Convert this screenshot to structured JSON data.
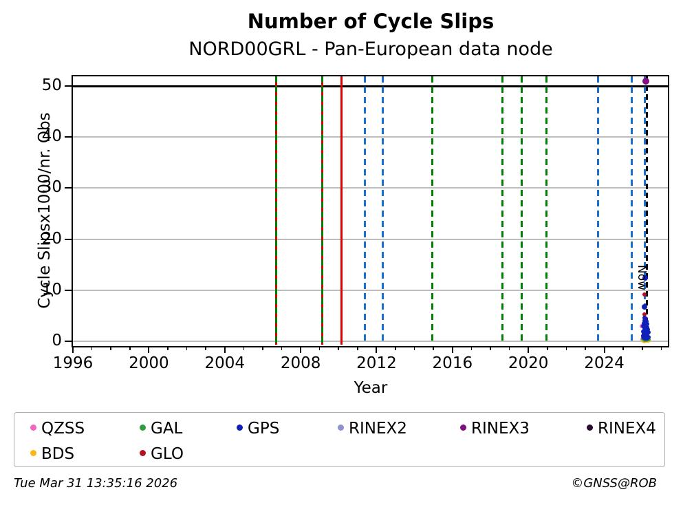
{
  "title": "Number of Cycle Slips",
  "subtitle": "NORD00GRL - Pan-European data node",
  "footer": {
    "timestamp": "Tue Mar 31 13:35:16 2026",
    "credit": "©GNSS@ROB"
  },
  "chart_data": {
    "type": "scatter",
    "title": "Number of Cycle Slips",
    "subtitle": "NORD00GRL - Pan-European data node",
    "xlabel": "Year",
    "ylabel": "Cycle Slipsx1000/nr. Obs",
    "xlim": [
      1996,
      2027.35
    ],
    "ylim": [
      -0.7,
      51.9
    ],
    "x_major_ticks": [
      1996,
      2000,
      2004,
      2008,
      2012,
      2016,
      2020,
      2024
    ],
    "x_tick_labels": [
      "1996",
      "2000",
      "2004",
      "2008",
      "2012",
      "2016",
      "2020",
      "2024"
    ],
    "x_minor_tick_step": 1,
    "y_ticks": [
      0,
      10,
      20,
      30,
      40,
      50
    ],
    "y_tick_labels": [
      "0",
      "10",
      "20",
      "30",
      "40",
      "50"
    ],
    "grid": "horizontal",
    "grid_color": "#bdbdbd",
    "gridline_y_values": [
      0,
      10,
      20,
      30,
      40
    ],
    "threshold_line": {
      "y": 50,
      "color": "#000000",
      "style": "solid"
    },
    "now_line": {
      "x": 2026.25,
      "label": "Now",
      "color": "#000000",
      "style": "dashed"
    },
    "event_lines": [
      {
        "x": 2006.72,
        "color": "#008000",
        "style": "dashed",
        "under_color": "#dd0000"
      },
      {
        "x": 2009.12,
        "color": "#008000",
        "style": "dashed",
        "under_color": "#dd0000"
      },
      {
        "x": 2010.17,
        "color": "#dd0000",
        "style": "solid"
      },
      {
        "x": 2011.4,
        "color": "#176fce",
        "style": "dashed"
      },
      {
        "x": 2012.33,
        "color": "#176fce",
        "style": "dashed"
      },
      {
        "x": 2014.94,
        "color": "#008000",
        "style": "dashed"
      },
      {
        "x": 2018.62,
        "color": "#008000",
        "style": "dashed"
      },
      {
        "x": 2019.66,
        "color": "#008000",
        "style": "dashed"
      },
      {
        "x": 2020.96,
        "color": "#008000",
        "style": "dashed"
      },
      {
        "x": 2023.67,
        "color": "#176fce",
        "style": "dashed"
      },
      {
        "x": 2025.44,
        "color": "#176fce",
        "style": "dashed"
      },
      {
        "x": 2026.15,
        "color": "#176fce",
        "style": "dashed"
      }
    ],
    "series": [
      {
        "name": "QZSS",
        "color": "#f364c3",
        "points": [
          [
            2025.97,
            2.95
          ],
          [
            2026.02,
            0.4
          ],
          [
            2026.1,
            0.12
          ]
        ]
      },
      {
        "name": "BDS",
        "color": "#fdb515",
        "points": [
          [
            2026.06,
            0.15
          ],
          [
            2026.16,
            0.1
          ],
          [
            2026.26,
            0.12
          ],
          [
            2026.12,
            0.04
          ],
          [
            2026.22,
            0.05
          ],
          [
            2026.32,
            0.1
          ]
        ]
      },
      {
        "name": "GLO",
        "color": "#b5121f",
        "points": [
          [
            2026.12,
            9.1
          ],
          [
            2026.1,
            5.2
          ],
          [
            2026.05,
            0.75
          ],
          [
            2026.18,
            0.7
          ],
          [
            2026.3,
            0.65
          ],
          [
            2026.12,
            0.5
          ]
        ]
      },
      {
        "name": "GAL",
        "color": "#2f9e41",
        "points": [
          [
            2026.06,
            0.45
          ],
          [
            2026.16,
            0.4
          ],
          [
            2026.26,
            0.38
          ],
          [
            2026.1,
            0.3
          ],
          [
            2026.22,
            0.28
          ],
          [
            2026.33,
            0.32
          ]
        ]
      },
      {
        "name": "GPS",
        "color": "#1020b8",
        "points": [
          [
            2026.17,
            12.4,
            4
          ],
          [
            2026.13,
            6.75,
            4
          ],
          [
            2026.12,
            4.6
          ],
          [
            2026.2,
            4.4
          ],
          [
            2026.1,
            4.0
          ],
          [
            2026.22,
            3.9
          ],
          [
            2026.08,
            3.5
          ],
          [
            2026.18,
            3.4
          ],
          [
            2026.28,
            3.3
          ],
          [
            2026.06,
            2.9
          ],
          [
            2026.16,
            2.8
          ],
          [
            2026.26,
            2.7
          ],
          [
            2026.1,
            2.4
          ],
          [
            2026.2,
            2.3
          ],
          [
            2026.3,
            2.2
          ],
          [
            2026.05,
            1.9
          ],
          [
            2026.15,
            1.8
          ],
          [
            2026.25,
            1.75
          ],
          [
            2026.33,
            1.7
          ],
          [
            2026.08,
            1.4
          ],
          [
            2026.18,
            1.3
          ],
          [
            2026.28,
            1.25
          ],
          [
            2026.04,
            1.0
          ],
          [
            2026.14,
            0.95
          ],
          [
            2026.24,
            0.9
          ],
          [
            2026.34,
            0.85
          ],
          [
            2026.07,
            0.6
          ],
          [
            2026.17,
            0.55
          ],
          [
            2026.27,
            0.5
          ]
        ]
      },
      {
        "name": "RINEX2",
        "color": "#9090cf",
        "points": []
      },
      {
        "name": "RINEX4",
        "color": "#2c0b33",
        "points": []
      },
      {
        "name": "RINEX3",
        "color": "#800f80",
        "points": [
          [
            2026.2,
            51.0,
            5
          ]
        ]
      }
    ],
    "legend_position": "below"
  },
  "legend": {
    "items": [
      {
        "label": "QZSS",
        "color": "#f364c3"
      },
      {
        "label": "GAL",
        "color": "#2f9e41"
      },
      {
        "label": "GPS",
        "color": "#1020b8"
      },
      {
        "label": "RINEX2",
        "color": "#9090cf"
      },
      {
        "label": "RINEX3",
        "color": "#800f80"
      },
      {
        "label": "RINEX4",
        "color": "#2c0b33"
      },
      {
        "label": "BDS",
        "color": "#fdb515"
      },
      {
        "label": "GLO",
        "color": "#b5121f"
      }
    ]
  }
}
